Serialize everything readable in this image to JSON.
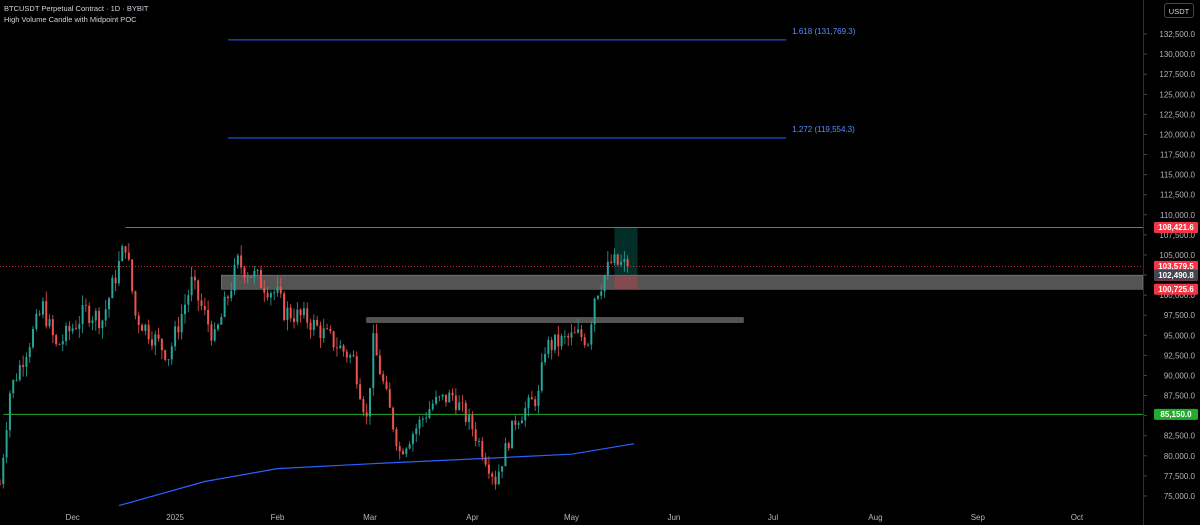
{
  "header": {
    "symbol_line": "BTCUSDT Perpetual Contract · 1D · BYBIT",
    "indicator_line": "High Volume Candle with Midpoint POC",
    "unit": "USDT"
  },
  "colors": {
    "background": "#000000",
    "up": "#26a69a",
    "down": "#ef5350",
    "fib": "#2962ff",
    "resistance": "#f23645",
    "support": "#22ab2f",
    "ma": "#2962ff",
    "current_price": "#f23645"
  },
  "chart_data": {
    "type": "candlestick",
    "symbol": "BTCUSDT",
    "timeframe": "1D",
    "x_axis_labels": [
      {
        "label": "Dec",
        "date": "2024-12-01"
      },
      {
        "label": "2025",
        "date": "2025-01-01"
      },
      {
        "label": "Feb",
        "date": "2025-02-01"
      },
      {
        "label": "Mar",
        "date": "2025-03-01"
      },
      {
        "label": "Apr",
        "date": "2025-04-01"
      },
      {
        "label": "May",
        "date": "2025-05-01"
      },
      {
        "label": "Jun",
        "date": "2025-06-01"
      },
      {
        "label": "Jul",
        "date": "2025-07-01"
      },
      {
        "label": "Aug",
        "date": "2025-08-01"
      },
      {
        "label": "Sep",
        "date": "2025-09-01"
      },
      {
        "label": "Oct",
        "date": "2025-10-01"
      }
    ],
    "x_range": [
      "2024-11-09",
      "2025-10-21"
    ],
    "ylim": [
      73500,
      134000
    ],
    "y_ticks": [
      75000,
      77500,
      80000,
      82500,
      85000,
      87500,
      90000,
      92500,
      95000,
      97500,
      100000,
      102500,
      105000,
      107500,
      110000,
      112500,
      115000,
      117500,
      120000,
      122500,
      125000,
      127500,
      130000,
      132500
    ],
    "y_tick_labels": [
      "75,000.0",
      "77,500.0",
      "80,000.0",
      "82,500.0",
      "85,000.0",
      "87,500.0",
      "90,000.0",
      "92,500.0",
      "95,000.0",
      "97,500.0",
      "100,000.0",
      "102,500.0",
      "105,000.0",
      "107,500.0",
      "110,000.0",
      "112,500.0",
      "115,000.0",
      "117,500.0",
      "120,000.0",
      "122,500.0",
      "125,000.0",
      "127,500.0",
      "130,000.0",
      "132,500.0"
    ],
    "candle_waypoints": [
      {
        "date": "2024-11-09",
        "close": 76500
      },
      {
        "date": "2024-11-12",
        "close": 88000
      },
      {
        "date": "2024-11-22",
        "close": 98500
      },
      {
        "date": "2024-11-26",
        "close": 93500
      },
      {
        "date": "2024-12-05",
        "close": 98000
      },
      {
        "date": "2024-12-10",
        "close": 97000
      },
      {
        "date": "2024-12-17",
        "close": 106500
      },
      {
        "date": "2024-12-20",
        "close": 97500
      },
      {
        "date": "2024-12-30",
        "close": 92500
      },
      {
        "date": "2025-01-06",
        "close": 101500
      },
      {
        "date": "2025-01-13",
        "close": 94500
      },
      {
        "date": "2025-01-20",
        "close": 104000
      },
      {
        "date": "2025-02-01",
        "close": 100000
      },
      {
        "date": "2025-02-03",
        "close": 98000
      },
      {
        "date": "2025-02-10",
        "close": 97000
      },
      {
        "date": "2025-02-24",
        "close": 92000
      },
      {
        "date": "2025-02-28",
        "close": 84500
      },
      {
        "date": "2025-03-02",
        "close": 94000
      },
      {
        "date": "2025-03-10",
        "close": 80500
      },
      {
        "date": "2025-03-20",
        "close": 86500
      },
      {
        "date": "2025-03-26",
        "close": 87500
      },
      {
        "date": "2025-04-01",
        "close": 83500
      },
      {
        "date": "2025-04-08",
        "close": 77000
      },
      {
        "date": "2025-04-14",
        "close": 84500
      },
      {
        "date": "2025-04-21",
        "close": 87500
      },
      {
        "date": "2025-04-23",
        "close": 93500
      },
      {
        "date": "2025-05-03",
        "close": 95000
      },
      {
        "date": "2025-05-06",
        "close": 94500
      },
      {
        "date": "2025-05-08",
        "close": 100000
      },
      {
        "date": "2025-05-13",
        "close": 104000
      },
      {
        "date": "2025-05-18",
        "close": 103579.5
      }
    ],
    "moving_average": {
      "color": "#2962ff",
      "points": [
        {
          "date": "2024-12-15",
          "value": 73800
        },
        {
          "date": "2025-01-10",
          "value": 76800
        },
        {
          "date": "2025-02-01",
          "value": 78400
        },
        {
          "date": "2025-03-01",
          "value": 79000
        },
        {
          "date": "2025-04-01",
          "value": 79600
        },
        {
          "date": "2025-05-01",
          "value": 80200
        },
        {
          "date": "2025-05-20",
          "value": 81500
        }
      ]
    },
    "fib_levels": [
      {
        "ratio": 1.618,
        "price": 131769.3,
        "label": "1.618 (131,769.3)",
        "x_start": "2025-01-17",
        "x_end": "2025-07-05"
      },
      {
        "ratio": 1.272,
        "price": 119554.3,
        "label": "1.272 (119,554.3)",
        "x_start": "2025-01-17",
        "x_end": "2025-07-05"
      }
    ],
    "horizontal_lines": [
      {
        "price": 108421.6,
        "color": "#f23645",
        "x_start": "2024-12-17"
      },
      {
        "price": 85150.0,
        "color": "#22ab2f",
        "x_start": "2024-11-10"
      }
    ],
    "zones": [
      {
        "price_low": 100725.6,
        "price_high": 102490.8,
        "x_start": "2025-01-15",
        "x_end": "2025-10-21"
      },
      {
        "price_low": 96600,
        "price_high": 97200,
        "x_start": "2025-02-28",
        "x_end": "2025-06-22"
      }
    ],
    "position_box": {
      "entry": 102490.8,
      "target": 108424.1,
      "stop": 100725.6,
      "x_start": "2025-05-14",
      "x_end": "2025-05-21"
    },
    "price_badges": [
      {
        "price": 108424.1,
        "label": "108,424.1",
        "color": "#089981"
      },
      {
        "price": 108421.6,
        "label": "108,421.6",
        "color": "#f23645"
      },
      {
        "price": 103579.5,
        "label": "103,579.5",
        "sub": "11:08:26",
        "color": "#f23645"
      },
      {
        "price": 102490.8,
        "label": "102,490.8",
        "color": "#434651"
      },
      {
        "price": 100725.6,
        "label": "100,725.6",
        "color": "#f23645"
      },
      {
        "price": 85150.0,
        "label": "85,150.0",
        "color": "#22ab2f"
      }
    ],
    "last_price": 103579.5
  }
}
